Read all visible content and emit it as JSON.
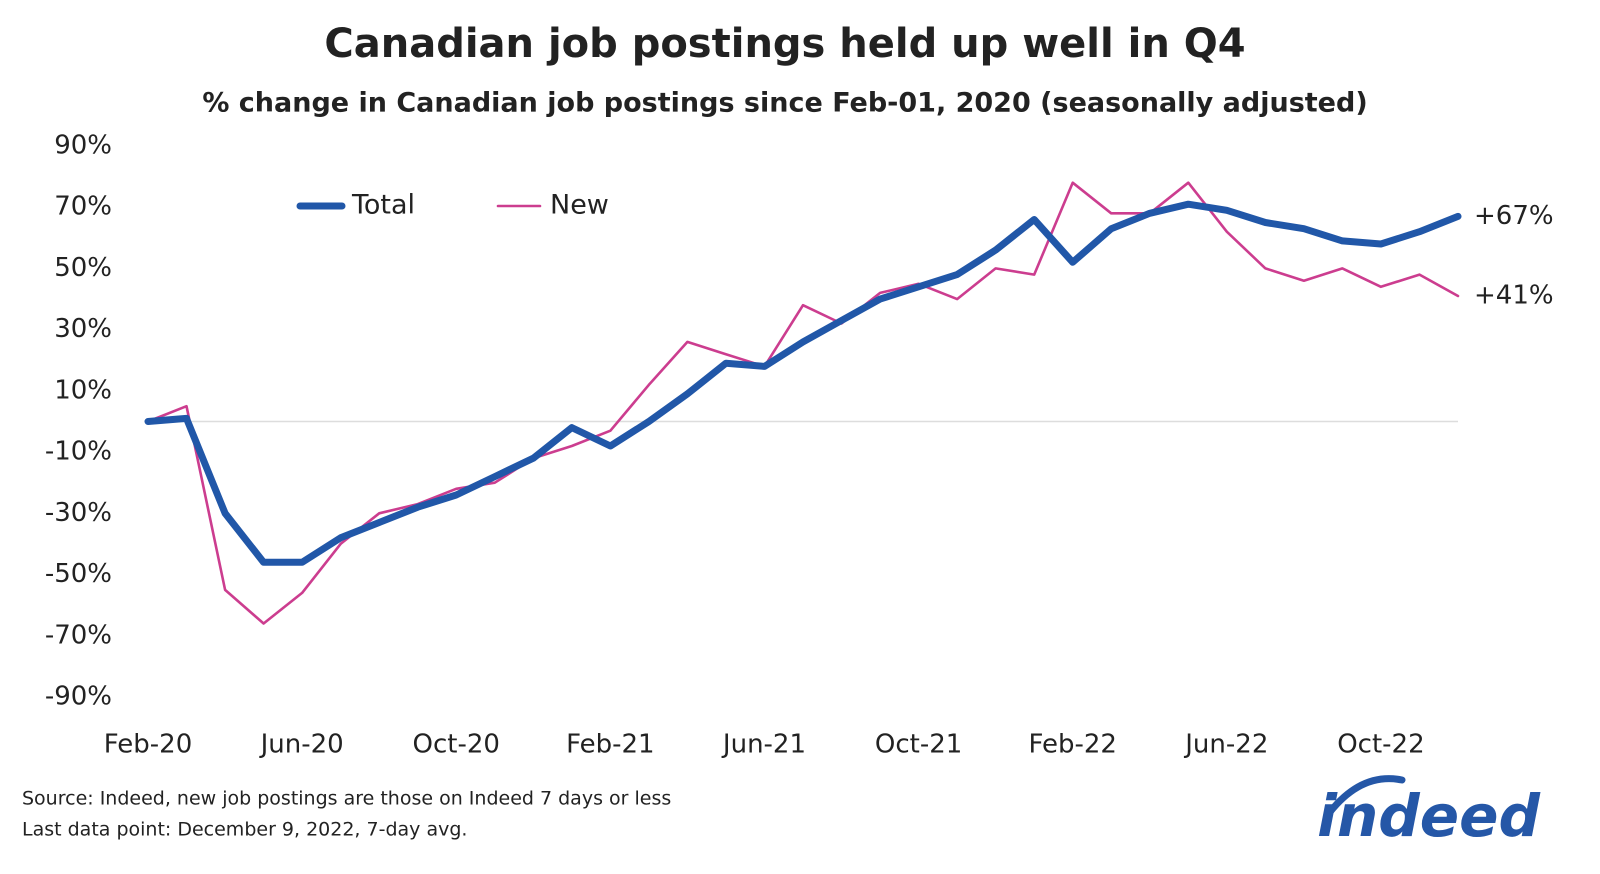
{
  "chart_data": {
    "type": "line",
    "title": "Canadian job postings held up well in Q4",
    "subtitle": "% change in Canadian job postings since Feb-01, 2020 (seasonally adjusted)",
    "categories": [
      "Feb-20",
      null,
      null,
      null,
      "Jun-20",
      null,
      null,
      null,
      "Oct-20",
      null,
      null,
      null,
      "Feb-21",
      null,
      null,
      null,
      "Jun-21",
      null,
      null,
      null,
      "Oct-21",
      null,
      null,
      null,
      "Feb-22",
      null,
      null,
      null,
      "Jun-22",
      null,
      null,
      null,
      "Oct-22",
      null,
      null
    ],
    "series": [
      {
        "name": "Total",
        "color": "#2157a8",
        "end_label": "+67%",
        "values": [
          0,
          1,
          -30,
          -46,
          -46,
          -38,
          -33,
          -28,
          -24,
          -18,
          -12,
          -2,
          -8,
          0,
          9,
          19,
          18,
          26,
          33,
          40,
          44,
          48,
          56,
          66,
          52,
          63,
          68,
          71,
          69,
          65,
          63,
          59,
          58,
          62,
          67
        ]
      },
      {
        "name": "New",
        "color": "#cc3d8f",
        "end_label": "+41%",
        "values": [
          0,
          5,
          -55,
          -66,
          -56,
          -40,
          -30,
          -27,
          -22,
          -20,
          -12,
          -8,
          -3,
          12,
          26,
          22,
          18,
          38,
          32,
          42,
          45,
          40,
          50,
          48,
          78,
          68,
          68,
          78,
          62,
          50,
          46,
          50,
          44,
          48,
          41
        ]
      }
    ],
    "ylim": [
      -90,
      90
    ],
    "yticks": [
      {
        "value": 90,
        "label": "90%"
      },
      {
        "value": 70,
        "label": "70%"
      },
      {
        "value": 50,
        "label": "50%"
      },
      {
        "value": 30,
        "label": "30%"
      },
      {
        "value": 10,
        "label": "10%"
      },
      {
        "value": -10,
        "label": "-10%"
      },
      {
        "value": -30,
        "label": "-30%"
      },
      {
        "value": -50,
        "label": "-50%"
      },
      {
        "value": -70,
        "label": "-70%"
      },
      {
        "value": -90,
        "label": "-90%"
      }
    ],
    "zero_line": true,
    "legend": "top-left",
    "source": "Source: Indeed, new job postings are those on Indeed 7 days or less",
    "note": "Last data point: December 9, 2022, 7-day avg.",
    "logo": "indeed"
  }
}
